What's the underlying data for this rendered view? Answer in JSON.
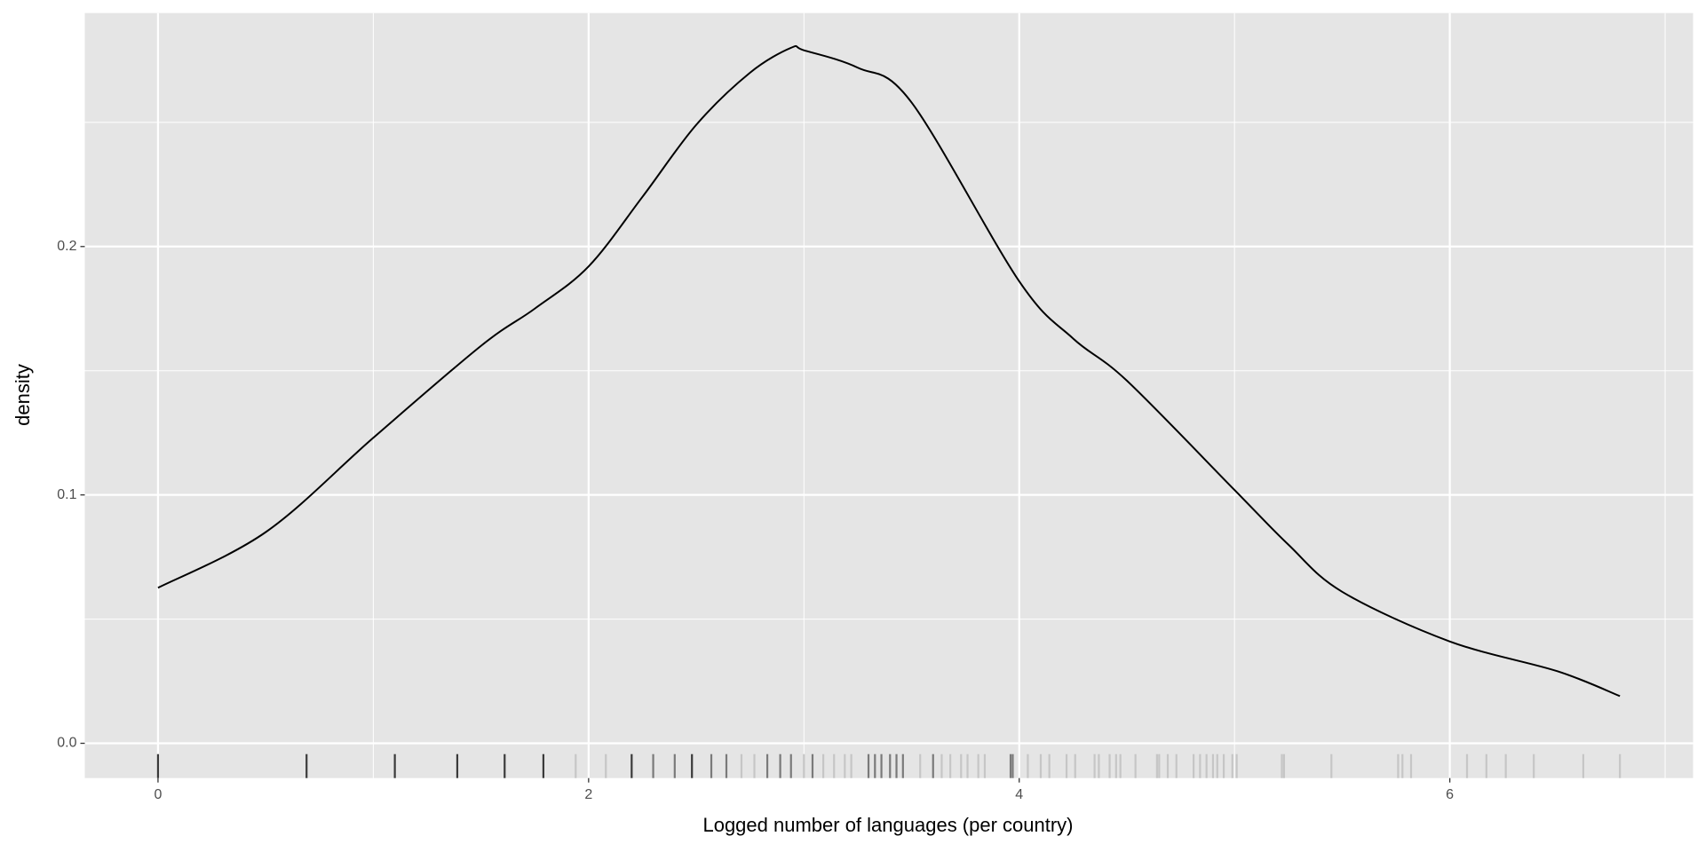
{
  "chart_data": {
    "type": "density",
    "xlabel": "Logged number of languages (per country)",
    "ylabel": "density",
    "xlim": [
      -0.34,
      7.13
    ],
    "ylim": [
      -0.014,
      0.294
    ],
    "xticks": [
      0,
      2,
      4,
      6
    ],
    "yticks": [
      {
        "value": 0,
        "label": "0.0"
      },
      0.1,
      0.2
    ],
    "minor_xticks": [
      1,
      3,
      5,
      7
    ],
    "minor_yticks": [
      0.05,
      0.15,
      0.25
    ],
    "grid": true,
    "panel_color": "#e5e5e5",
    "grid_color": "#ffffff",
    "line_color": "#000000",
    "x": [
      0,
      0.5,
      1,
      1.5,
      1.75,
      2,
      2.25,
      2.5,
      2.75,
      2.94,
      3,
      3.25,
      3.5,
      4,
      4.25,
      4.5,
      5,
      5.25,
      5.5,
      6,
      6.5,
      6.79
    ],
    "values": [
      0.0626,
      0.085,
      0.123,
      0.16,
      0.175,
      0.192,
      0.22,
      0.249,
      0.27,
      0.28,
      0.279,
      0.272,
      0.258,
      0.186,
      0.163,
      0.146,
      0.102,
      0.08,
      0.061,
      0.041,
      0.029,
      0.019
    ],
    "rug": [
      {
        "color": "#3a3a3a",
        "x": [
          0,
          0.69,
          1.1,
          1.39,
          1.61,
          1.79,
          2.2,
          2.48
        ]
      },
      {
        "color": "#7a7a7a",
        "x": [
          2.3,
          2.4,
          2.57,
          2.64,
          2.83,
          2.89,
          2.94,
          3.04,
          3.3,
          3.33,
          3.36,
          3.4,
          3.43,
          3.46,
          3.6,
          3.96,
          3.97
        ]
      },
      {
        "color": "#c6c6c6",
        "x": [
          1.94,
          2.08,
          2.71,
          2.77,
          3.0,
          3.09,
          3.14,
          3.19,
          3.22,
          3.54,
          3.64,
          3.68,
          3.73,
          3.76,
          3.81,
          3.84,
          4.04,
          4.1,
          4.14,
          4.22,
          4.26,
          4.35,
          4.37,
          4.42,
          4.45,
          4.47,
          4.54,
          4.64,
          4.65,
          4.69,
          4.73,
          4.81,
          4.84,
          4.87,
          4.9,
          4.92,
          4.95,
          4.99,
          5.01,
          5.22,
          5.23,
          5.45,
          5.76,
          5.78,
          5.82,
          6.08,
          6.17,
          6.26,
          6.39,
          6.62,
          6.79
        ]
      }
    ]
  }
}
